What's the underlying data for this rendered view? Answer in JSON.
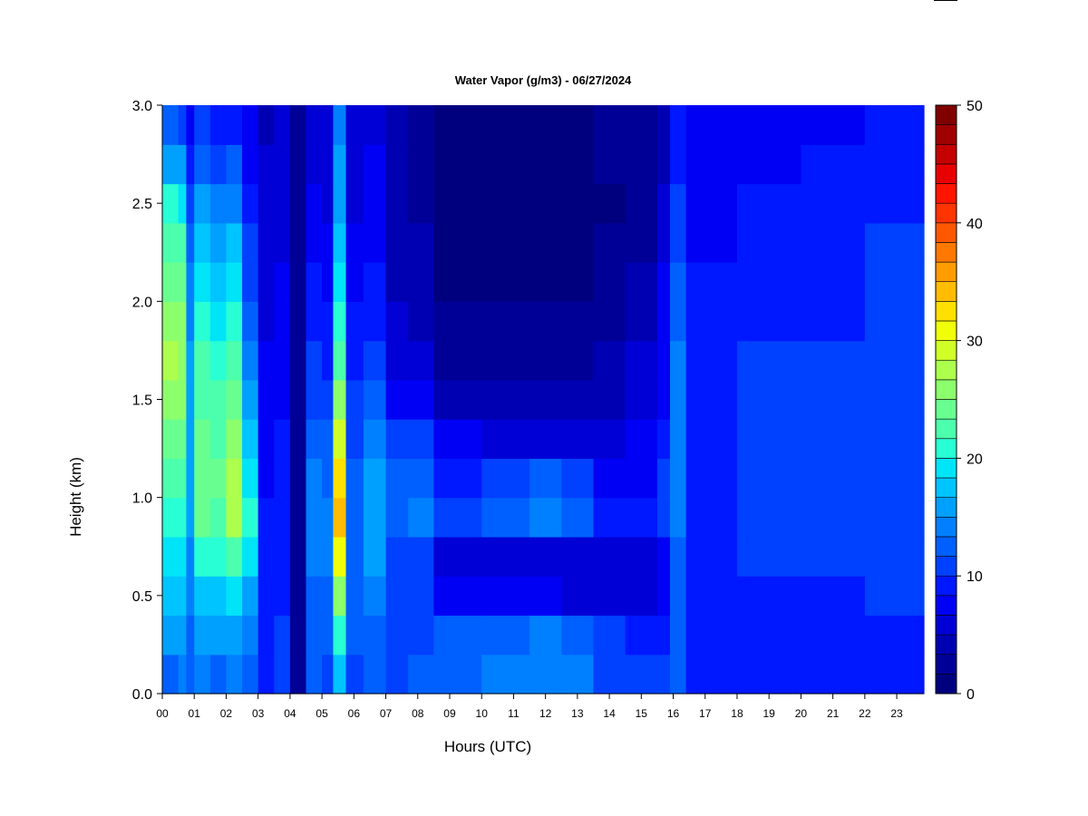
{
  "chart_data": {
    "type": "heatmap",
    "title": "Water Vapor (g/m3) - 06/27/2024",
    "xlabel": "Hours (UTC)",
    "ylabel": "Height (km)",
    "x_ticks": [
      "00",
      "01",
      "02",
      "03",
      "04",
      "05",
      "06",
      "07",
      "08",
      "09",
      "10",
      "11",
      "12",
      "13",
      "14",
      "15",
      "16",
      "17",
      "18",
      "19",
      "20",
      "21",
      "22",
      "23"
    ],
    "xlim": [
      0,
      23.85
    ],
    "y_ticks": [
      "0.0",
      "0.5",
      "1.0",
      "1.5",
      "2.0",
      "2.5",
      "3.0"
    ],
    "ylim": [
      0,
      3
    ],
    "colorbar": {
      "ticks": [
        "0",
        "10",
        "20",
        "30",
        "40",
        "50"
      ],
      "range": [
        0,
        50
      ],
      "step": 2,
      "colors": [
        "#00007f",
        "#000097",
        "#0000b3",
        "#0000d6",
        "#0000f5",
        "#0018ff",
        "#0040ff",
        "#0060ff",
        "#0080ff",
        "#00a0ff",
        "#00c4ff",
        "#00e4f8",
        "#28ffd4",
        "#4cffac",
        "#68ff90",
        "#8cff6c",
        "#acff4c",
        "#d0ff28",
        "#f0ff08",
        "#ffe000",
        "#ffbc00",
        "#ff9c00",
        "#ff7800",
        "#ff5800",
        "#ff3400",
        "#ff1400",
        "#e80000",
        "#c40000",
        "#a00000",
        "#800000"
      ]
    },
    "columns_water_vapor_gm3": [
      {
        "t": 0.0,
        "v": [
          15,
          18,
          20,
          22,
          25,
          27,
          29,
          31,
          32,
          31,
          29,
          27,
          24,
          19,
          14
        ]
      },
      {
        "t": 0.5,
        "v": [
          16,
          18,
          20,
          22,
          24,
          26,
          28,
          30,
          31,
          30,
          28,
          26,
          23,
          18,
          13
        ]
      },
      {
        "t": 0.75,
        "v": [
          14,
          15,
          16,
          17,
          18,
          19,
          19,
          19,
          18,
          17,
          16,
          15,
          13,
          11,
          9
        ]
      },
      {
        "t": 1.0,
        "v": [
          16,
          19,
          21,
          24,
          28,
          29,
          28,
          27,
          26,
          25,
          23,
          21,
          18,
          15,
          12
        ]
      },
      {
        "t": 1.5,
        "v": [
          15,
          18,
          21,
          24,
          27,
          28,
          27,
          26,
          25,
          23,
          21,
          19,
          16,
          13,
          10
        ]
      },
      {
        "t": 2.0,
        "v": [
          17,
          19,
          23,
          27,
          32,
          33,
          31,
          29,
          27,
          25,
          22,
          20,
          17,
          14,
          11
        ]
      },
      {
        "t": 2.5,
        "v": [
          14,
          16,
          19,
          22,
          24,
          23,
          21,
          19,
          17,
          15,
          13,
          12,
          10,
          9,
          8
        ]
      },
      {
        "t": 3.0,
        "v": [
          11,
          11,
          10,
          10,
          10,
          9,
          9,
          8,
          8,
          7,
          7,
          6,
          6,
          6,
          5
        ]
      },
      {
        "t": 3.5,
        "v": [
          12,
          12,
          11,
          11,
          11,
          10,
          10,
          9,
          9,
          8,
          8,
          7,
          7,
          6,
          6
        ]
      },
      {
        "t": 4.0,
        "v": [
          2,
          2,
          3,
          3,
          3,
          3,
          3,
          3,
          3,
          3,
          2,
          2,
          2,
          2,
          2
        ]
      },
      {
        "t": 4.5,
        "v": [
          14,
          14,
          15,
          16,
          17,
          16,
          15,
          13,
          12,
          11,
          10,
          9,
          8,
          7,
          7
        ]
      },
      {
        "t": 5.0,
        "v": [
          13,
          14,
          15,
          16,
          16,
          15,
          14,
          13,
          11,
          10,
          9,
          8,
          7,
          6,
          6
        ]
      },
      {
        "t": 5.35,
        "v": [
          20,
          24,
          30,
          36,
          40,
          38,
          34,
          30,
          26,
          24,
          22,
          21,
          19,
          18,
          17
        ]
      },
      {
        "t": 5.75,
        "v": [
          13,
          14,
          14,
          15,
          15,
          14,
          13,
          12,
          11,
          10,
          9,
          8,
          7,
          7,
          6
        ]
      },
      {
        "t": 6.3,
        "v": [
          14,
          15,
          17,
          18,
          19,
          18,
          16,
          14,
          12,
          11,
          10,
          9,
          8,
          8,
          7
        ]
      },
      {
        "t": 7.0,
        "v": [
          13,
          12,
          12,
          13,
          15,
          14,
          12,
          8,
          7,
          6,
          5,
          5,
          5,
          4,
          4
        ]
      },
      {
        "t": 7.7,
        "v": [
          14,
          13,
          12,
          13,
          16,
          15,
          12,
          8,
          6,
          5,
          4,
          4,
          3,
          3,
          3
        ]
      },
      {
        "t": 8.5,
        "v": [
          15,
          14,
          9,
          7,
          13,
          11,
          8,
          5,
          3,
          2,
          1,
          1,
          1,
          1,
          1
        ]
      },
      {
        "t": 10.0,
        "v": [
          16,
          15,
          8,
          6,
          15,
          13,
          7,
          5,
          3,
          2,
          1,
          1,
          1,
          1,
          1
        ]
      },
      {
        "t": 11.5,
        "v": [
          17,
          16,
          8,
          6,
          17,
          15,
          7,
          5,
          3,
          2,
          1,
          1,
          1,
          1,
          1
        ]
      },
      {
        "t": 12.5,
        "v": [
          16,
          15,
          7,
          6,
          15,
          13,
          7,
          5,
          3,
          2,
          1,
          1,
          1,
          1,
          1
        ]
      },
      {
        "t": 13.5,
        "v": [
          13,
          12,
          7,
          6,
          11,
          9,
          7,
          5,
          4,
          3,
          2,
          2,
          1,
          2,
          3
        ]
      },
      {
        "t": 14.5,
        "v": [
          12,
          10,
          7,
          6,
          10,
          9,
          8,
          7,
          6,
          5,
          4,
          3,
          3,
          2,
          2
        ]
      },
      {
        "t": 15.5,
        "v": [
          13,
          11,
          9,
          8,
          13,
          12,
          10,
          9,
          9,
          8,
          8,
          7,
          6,
          5,
          4
        ]
      },
      {
        "t": 15.9,
        "v": [
          15,
          15,
          15,
          15,
          16,
          16,
          16,
          17,
          16,
          15,
          14,
          13,
          12,
          11,
          10
        ]
      },
      {
        "t": 16.4,
        "v": [
          10,
          10,
          10,
          11,
          11,
          11,
          11,
          11,
          10,
          10,
          10,
          9,
          9,
          8,
          8
        ]
      },
      {
        "t": 18.0,
        "v": [
          10,
          11,
          11,
          12,
          12,
          12,
          12,
          12,
          12,
          11,
          11,
          10,
          10,
          9,
          8
        ]
      },
      {
        "t": 20.0,
        "v": [
          10,
          11,
          11,
          12,
          12,
          12,
          12,
          12,
          12,
          11,
          11,
          11,
          10,
          10,
          9
        ]
      },
      {
        "t": 22.0,
        "v": [
          10,
          11,
          12,
          12,
          13,
          13,
          13,
          13,
          12,
          12,
          12,
          12,
          11,
          11,
          10
        ]
      },
      {
        "t": 23.85,
        "v": [
          10,
          10,
          11,
          11,
          12,
          12,
          12,
          12,
          12,
          11,
          11,
          11,
          10,
          10,
          9
        ]
      }
    ],
    "grid": false,
    "legend": "colorbar-right"
  }
}
